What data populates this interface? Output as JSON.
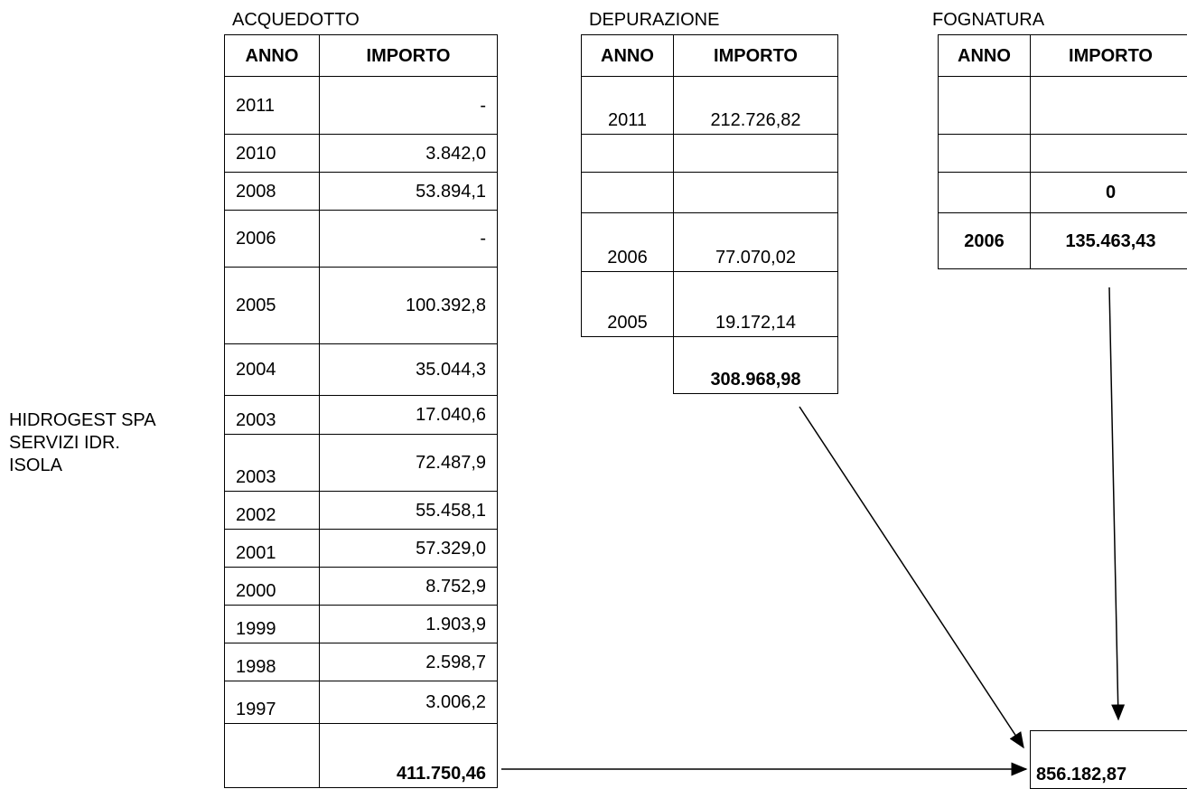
{
  "company": [
    "HIDROGEST SPA",
    "SERVIZI IDR.",
    "ISOLA"
  ],
  "tables": [
    {
      "title": "ACQUEDOTTO",
      "header": [
        "ANNO",
        "IMPORTO"
      ],
      "rows": [
        [
          "2011",
          "-"
        ],
        [
          "2010",
          "3.842,0"
        ],
        [
          "2008",
          "53.894,1"
        ],
        [
          "2006",
          "-"
        ],
        [
          "2005",
          "100.392,8"
        ],
        [
          "2004",
          "35.044,3"
        ],
        [
          "2003",
          "17.040,6"
        ],
        [
          "2003",
          "72.487,9"
        ],
        [
          "2002",
          "55.458,1"
        ],
        [
          "2001",
          "57.329,0"
        ],
        [
          "2000",
          "8.752,9"
        ],
        [
          "1999",
          "1.903,9"
        ],
        [
          "1998",
          "2.598,7"
        ],
        [
          "1997",
          "3.006,2"
        ]
      ],
      "total": "411.750,46"
    },
    {
      "title": "DEPURAZIONE",
      "header": [
        "ANNO",
        "IMPORTO"
      ],
      "rows": [
        [
          "2011",
          "212.726,82"
        ],
        [
          null,
          null
        ],
        [
          null,
          null
        ],
        [
          "2006",
          "77.070,02"
        ],
        [
          "2005",
          "19.172,14"
        ]
      ],
      "total": "308.968,98"
    },
    {
      "title": "FOGNATURA",
      "header": [
        "ANNO",
        "IMPORTO"
      ],
      "rows": [
        [
          null,
          null
        ],
        [
          null,
          null
        ],
        [
          null,
          "0"
        ],
        [
          "2006",
          "135.463,43"
        ]
      ]
    }
  ],
  "grand_total": "856.182,87"
}
